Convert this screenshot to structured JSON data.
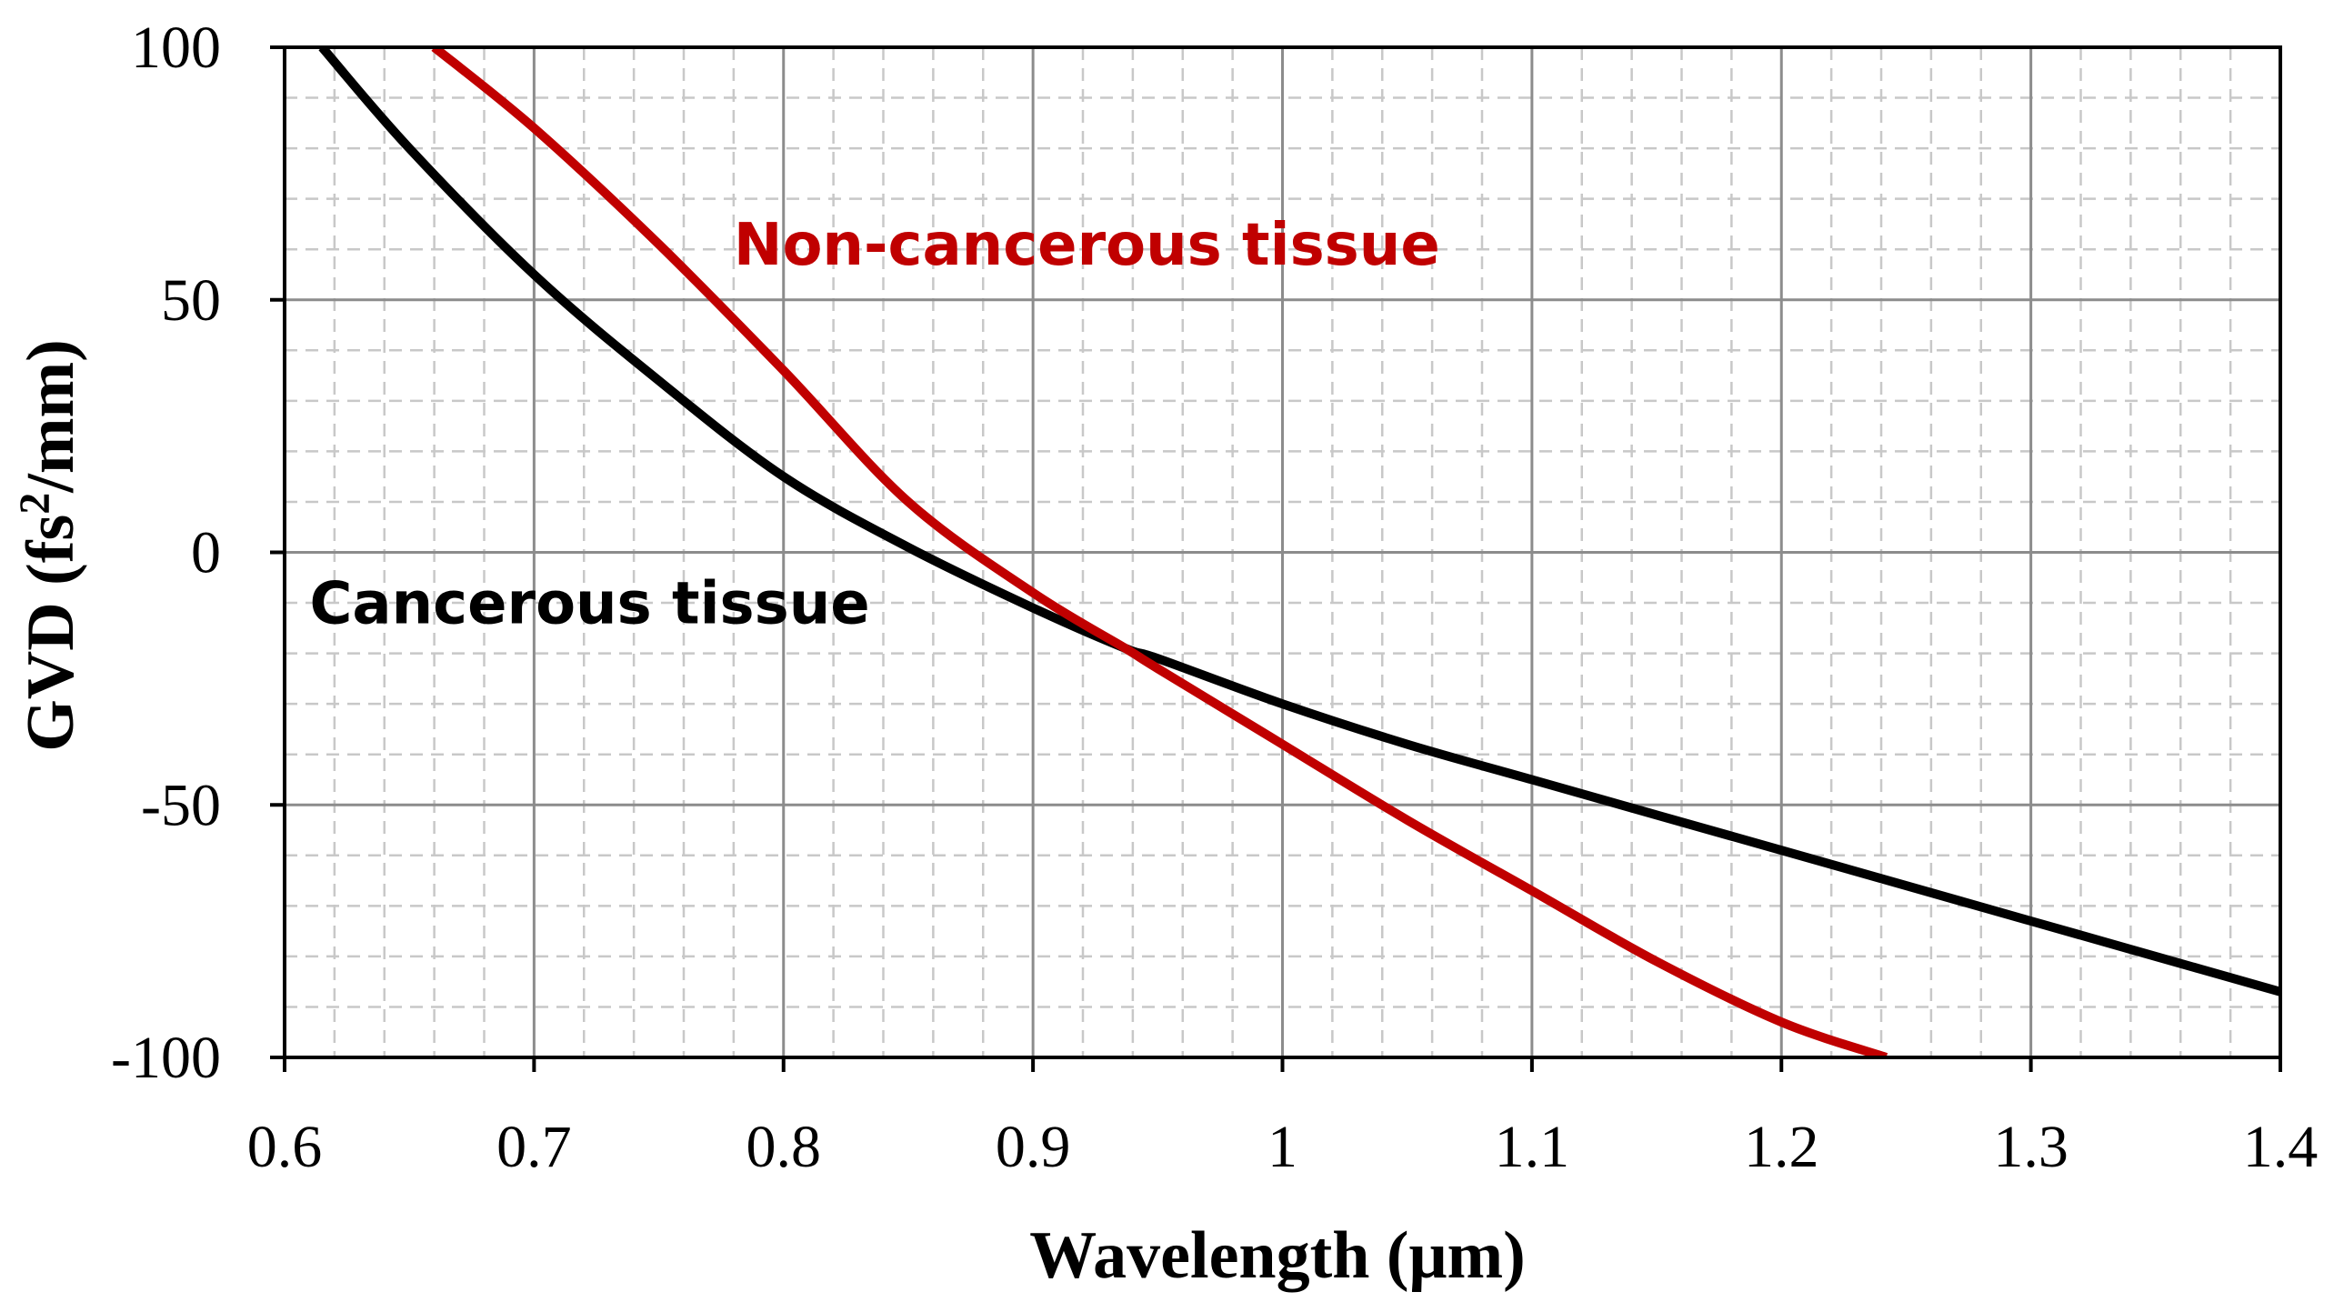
{
  "chart_data": {
    "type": "line",
    "title": "",
    "xlabel": "Wavelength (μm)",
    "ylabel": {
      "prefix": "GVD (fs",
      "superscript": "2",
      "suffix": "/mm)"
    },
    "xlim": [
      0.6,
      1.4
    ],
    "ylim": [
      -100,
      100
    ],
    "x_ticks": [
      "0.6",
      "0.7",
      "0.8",
      "0.9",
      "1",
      "1.1",
      "1.2",
      "1.3",
      "1.4"
    ],
    "y_ticks": [
      "100",
      "50",
      "0",
      "-50",
      "-100"
    ],
    "grid": {
      "major": true,
      "minor": true
    },
    "series": [
      {
        "name": "Cancerous tissue",
        "color": "#000000",
        "x": [
          0.615,
          0.65,
          0.7,
          0.75,
          0.8,
          0.85,
          0.9,
          0.937,
          0.95,
          1.0,
          1.05,
          1.1,
          1.15,
          1.2,
          1.25,
          1.3,
          1.35,
          1.4
        ],
        "y": [
          100,
          80,
          55,
          34,
          15,
          1,
          -11,
          -19,
          -21,
          -30,
          -38,
          -45,
          -52,
          -59,
          -66,
          -73,
          -80,
          -87
        ]
      },
      {
        "name": "Non-cancerous tissue",
        "color": "#c00000",
        "x": [
          0.66,
          0.7,
          0.75,
          0.8,
          0.85,
          0.9,
          0.937,
          0.95,
          1.0,
          1.05,
          1.1,
          1.15,
          1.2,
          1.242
        ],
        "y": [
          100,
          84,
          61,
          36,
          10,
          -8,
          -19,
          -23,
          -38,
          -53,
          -67,
          -81,
          -93,
          -100
        ]
      }
    ],
    "annotations": [
      {
        "text": "Non-cancerous tissue",
        "x": 0.78,
        "y": 57,
        "color": "#c00000"
      },
      {
        "text": "Cancerous tissue",
        "x": 0.61,
        "y": -14,
        "color": "#000000"
      }
    ]
  }
}
